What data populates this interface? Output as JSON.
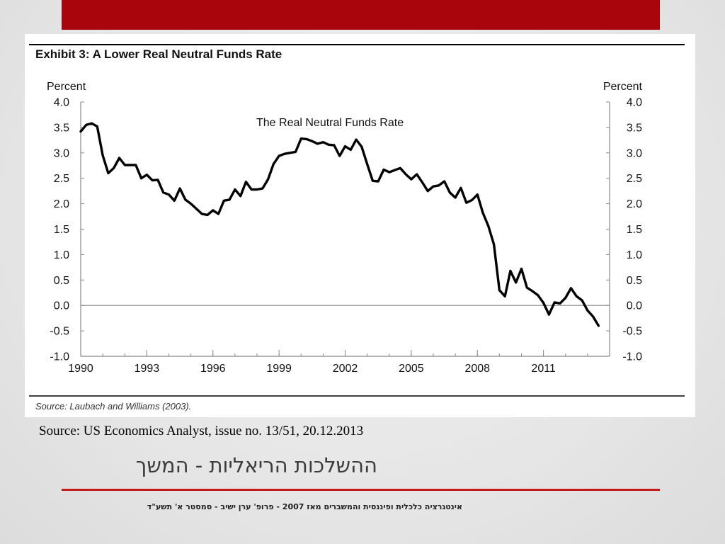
{
  "slide": {
    "source_text": "Source: US Economics Analyst, issue no. 13/51, 20.12.2013",
    "title": "ההשלכות הריאליות - המשך",
    "footer": "אינטגרציה כלכלית ופיננסית והמשברים מאז 2007 - פרופ' ערן ישיב - סמסטר א' תשע\"ד",
    "accent_color": "#a8050c",
    "rule_color": "#c41a1a"
  },
  "chart_data": {
    "type": "line",
    "title": "Exhibit 3: A Lower Real Neutral Funds Rate",
    "annotation": "The Real Neutral Funds Rate",
    "source": "Source: Laubach and Williams (2003).",
    "ylabel_left": "Percent",
    "ylabel_right": "Percent",
    "ylim": [
      -1.0,
      4.0
    ],
    "xlim": [
      1990,
      2014
    ],
    "x_ticks": [
      "1990",
      "1993",
      "1996",
      "1999",
      "2002",
      "2005",
      "2008",
      "2011"
    ],
    "y_ticks": [
      "4.0",
      "3.5",
      "3.0",
      "2.5",
      "2.0",
      "1.5",
      "1.0",
      "0.5",
      "0.0",
      "-0.5",
      "-1.0"
    ],
    "zero_line": true,
    "series": [
      {
        "color": "#000000",
        "points": [
          [
            1990.0,
            3.42
          ],
          [
            1990.25,
            3.55
          ],
          [
            1990.5,
            3.58
          ],
          [
            1990.75,
            3.52
          ],
          [
            1991.0,
            2.95
          ],
          [
            1991.25,
            2.6
          ],
          [
            1991.5,
            2.7
          ],
          [
            1991.75,
            2.9
          ],
          [
            1992.0,
            2.76
          ],
          [
            1992.25,
            2.76
          ],
          [
            1992.5,
            2.76
          ],
          [
            1992.75,
            2.5
          ],
          [
            1993.0,
            2.57
          ],
          [
            1993.25,
            2.46
          ],
          [
            1993.5,
            2.47
          ],
          [
            1993.75,
            2.22
          ],
          [
            1994.0,
            2.18
          ],
          [
            1994.25,
            2.06
          ],
          [
            1994.5,
            2.3
          ],
          [
            1994.75,
            2.08
          ],
          [
            1995.0,
            2.0
          ],
          [
            1995.25,
            1.9
          ],
          [
            1995.5,
            1.8
          ],
          [
            1995.75,
            1.78
          ],
          [
            1996.0,
            1.87
          ],
          [
            1996.25,
            1.8
          ],
          [
            1996.5,
            2.06
          ],
          [
            1996.75,
            2.08
          ],
          [
            1997.0,
            2.28
          ],
          [
            1997.25,
            2.15
          ],
          [
            1997.5,
            2.43
          ],
          [
            1997.75,
            2.28
          ],
          [
            1998.0,
            2.28
          ],
          [
            1998.25,
            2.3
          ],
          [
            1998.5,
            2.48
          ],
          [
            1998.75,
            2.78
          ],
          [
            1999.0,
            2.94
          ],
          [
            1999.25,
            2.98
          ],
          [
            1999.5,
            3.0
          ],
          [
            1999.75,
            3.02
          ],
          [
            2000.0,
            3.28
          ],
          [
            2000.25,
            3.27
          ],
          [
            2000.5,
            3.23
          ],
          [
            2000.75,
            3.18
          ],
          [
            2001.0,
            3.21
          ],
          [
            2001.25,
            3.16
          ],
          [
            2001.5,
            3.15
          ],
          [
            2001.75,
            2.94
          ],
          [
            2002.0,
            3.13
          ],
          [
            2002.25,
            3.06
          ],
          [
            2002.5,
            3.26
          ],
          [
            2002.75,
            3.12
          ],
          [
            2003.0,
            2.78
          ],
          [
            2003.25,
            2.45
          ],
          [
            2003.5,
            2.44
          ],
          [
            2003.75,
            2.67
          ],
          [
            2004.0,
            2.62
          ],
          [
            2004.25,
            2.66
          ],
          [
            2004.5,
            2.7
          ],
          [
            2004.75,
            2.58
          ],
          [
            2005.0,
            2.48
          ],
          [
            2005.25,
            2.58
          ],
          [
            2005.5,
            2.42
          ],
          [
            2005.75,
            2.25
          ],
          [
            2006.0,
            2.34
          ],
          [
            2006.25,
            2.36
          ],
          [
            2006.5,
            2.44
          ],
          [
            2006.75,
            2.22
          ],
          [
            2007.0,
            2.12
          ],
          [
            2007.25,
            2.31
          ],
          [
            2007.5,
            2.02
          ],
          [
            2007.75,
            2.07
          ],
          [
            2008.0,
            2.18
          ],
          [
            2008.25,
            1.82
          ],
          [
            2008.5,
            1.56
          ],
          [
            2008.75,
            1.2
          ],
          [
            2009.0,
            0.3
          ],
          [
            2009.25,
            0.18
          ],
          [
            2009.5,
            0.68
          ],
          [
            2009.75,
            0.45
          ],
          [
            2010.0,
            0.72
          ],
          [
            2010.25,
            0.35
          ],
          [
            2010.5,
            0.28
          ],
          [
            2010.75,
            0.2
          ],
          [
            2011.0,
            0.05
          ],
          [
            2011.25,
            -0.18
          ],
          [
            2011.5,
            0.06
          ],
          [
            2011.75,
            0.04
          ],
          [
            2012.0,
            0.15
          ],
          [
            2012.25,
            0.34
          ],
          [
            2012.5,
            0.18
          ],
          [
            2012.75,
            0.1
          ],
          [
            2013.0,
            -0.1
          ],
          [
            2013.25,
            -0.22
          ],
          [
            2013.5,
            -0.4
          ]
        ]
      }
    ]
  }
}
